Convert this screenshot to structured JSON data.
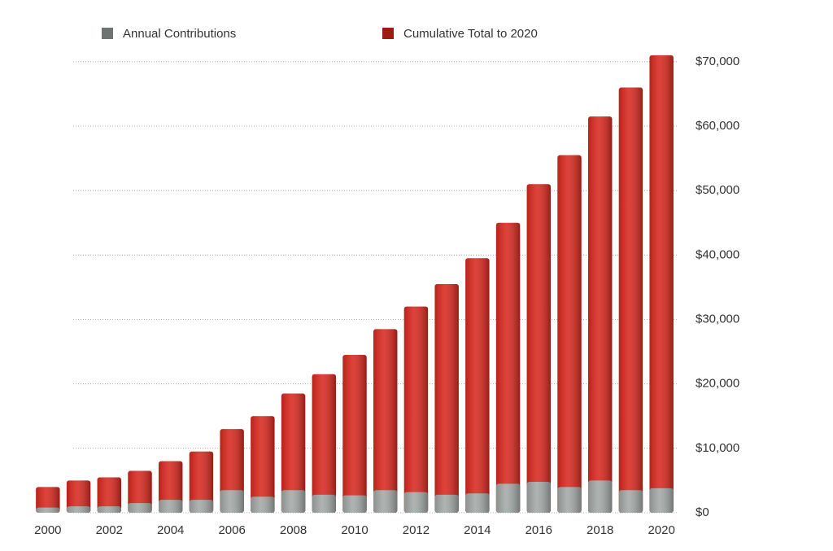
{
  "chart_data": {
    "type": "bar",
    "categories": [
      "2000",
      null,
      "2002",
      null,
      "2004",
      null,
      "2006",
      null,
      "2008",
      null,
      "2010",
      null,
      "2012",
      null,
      "2014",
      null,
      "2016",
      null,
      "2018",
      null,
      "2020"
    ],
    "series": [
      {
        "name": "Annual Contributions",
        "color": "#a3a8a6",
        "legend_color": "#6f7472",
        "values": [
          800,
          1000,
          1000,
          1500,
          2000,
          2000,
          3500,
          2500,
          3500,
          2800,
          2700,
          3500,
          3200,
          2800,
          3000,
          4500,
          4800,
          4000,
          5000,
          3500,
          3800
        ]
      },
      {
        "name": "Cumulative Total  to 2020",
        "color": "#d8281f",
        "legend_color": "#9e1b14",
        "values": [
          4000,
          5000,
          5500,
          6500,
          8000,
          9500,
          13000,
          15000,
          18500,
          21500,
          24500,
          28500,
          32000,
          35500,
          39500,
          45000,
          51000,
          55500,
          61500,
          66000,
          71000
        ]
      }
    ],
    "ylim": [
      0,
      72000
    ],
    "yticks": [
      {
        "value": 0,
        "label": "$0"
      },
      {
        "value": 10000,
        "label": "$10,000"
      },
      {
        "value": 20000,
        "label": "$20,000"
      },
      {
        "value": 30000,
        "label": "$30,000"
      },
      {
        "value": 40000,
        "label": "$40,000"
      },
      {
        "value": 50000,
        "label": "$50,000"
      },
      {
        "value": 60000,
        "label": "$60,000"
      },
      {
        "value": 70000,
        "label": "$70,000"
      }
    ],
    "grid": true,
    "legend": "top"
  }
}
